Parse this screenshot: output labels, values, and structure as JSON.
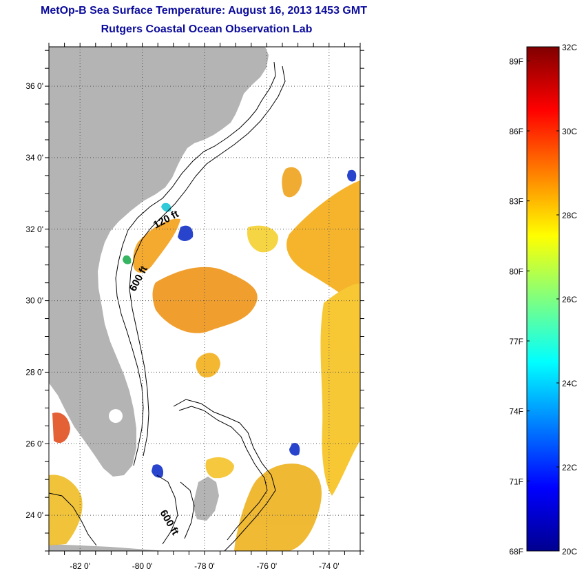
{
  "title": {
    "line1": "MetOp-B Sea Surface Temperature:  August 16, 2013 1453 GMT",
    "line2": "Rutgers Coastal Ocean Observation Lab"
  },
  "map": {
    "lat_labels": [
      "36 0'",
      "34 0'",
      "32 0'",
      "30 0'",
      "28 0'",
      "26 0'",
      "24 0'"
    ],
    "lat_values": [
      36,
      34,
      32,
      30,
      28,
      26,
      24
    ],
    "lon_labels": [
      "-82 0'",
      "-80 0'",
      "-78 0'",
      "-76 0'",
      "-74 0'"
    ],
    "lon_values": [
      -82,
      -80,
      -78,
      -76,
      -74
    ],
    "lat_range": [
      23,
      37.1
    ],
    "lon_range": [
      -83,
      -73
    ],
    "contour_labels": [
      "120 ft",
      "600 ft",
      "600 ft"
    ],
    "land_color": "#b4b4b4",
    "grid_style": "dotted"
  },
  "colorbar": {
    "fahrenheit_labels": [
      "89F",
      "86F",
      "83F",
      "80F",
      "77F",
      "74F",
      "71F",
      "68F"
    ],
    "fahrenheit_values": [
      89,
      86,
      83,
      80,
      77,
      74,
      71,
      68
    ],
    "celsius_labels": [
      "32C",
      "30C",
      "28C",
      "26C",
      "24C",
      "22C",
      "20C"
    ],
    "celsius_values": [
      32,
      30,
      28,
      26,
      24,
      22,
      20
    ],
    "range_c": [
      20,
      32
    ],
    "colormap": "jet"
  }
}
